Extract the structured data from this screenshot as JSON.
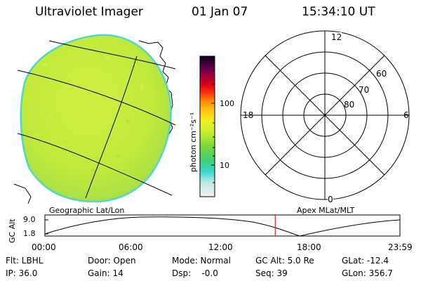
{
  "header": {
    "title": "Ultraviolet Imager",
    "date": "01 Jan 07",
    "time": "15:34:10 UT"
  },
  "colorbar": {
    "unit_label": "photon cm⁻²s⁻¹",
    "ticks": [
      {
        "label": "100",
        "value": 100
      },
      {
        "label": "10",
        "value": 10
      }
    ]
  },
  "polar": {
    "mlt_labels": {
      "top": "12",
      "right": "6",
      "bottom": "0",
      "left": "18"
    },
    "lat_labels": [
      "60",
      "70",
      "80"
    ]
  },
  "orbit_plot": {
    "left_title": "Geographic Lat/Lon",
    "right_title": "Apex MLat/MLT",
    "ylabel": "GC Alt",
    "y_ticks": [
      "9.0",
      "1.8"
    ],
    "x_ticks": [
      "00:00",
      "06:00",
      "12:00",
      "18:00",
      "23:59"
    ],
    "current_time_hours": 15.57
  },
  "status": [
    {
      "key": "flt",
      "text": "Flt: LBHL"
    },
    {
      "key": "door",
      "text": "Door: Open"
    },
    {
      "key": "mode",
      "text": "Mode: Normal"
    },
    {
      "key": "gcalt",
      "text": "GC Alt: 5.0 Re"
    },
    {
      "key": "glat",
      "text": "GLat: -12.4"
    },
    {
      "key": "ip",
      "text": "IP: 36.0"
    },
    {
      "key": "gain",
      "text": "Gain: 14"
    },
    {
      "key": "dsp",
      "text": "Dsp:    -0.0"
    },
    {
      "key": "seq",
      "text": "Seq: 39"
    },
    {
      "key": "glon",
      "text": "GLon: 356.7"
    }
  ],
  "colors": {
    "disk_edge": "#4fd8c8",
    "disk_fill": "#c4ec3a",
    "time_marker": "#e02020"
  }
}
